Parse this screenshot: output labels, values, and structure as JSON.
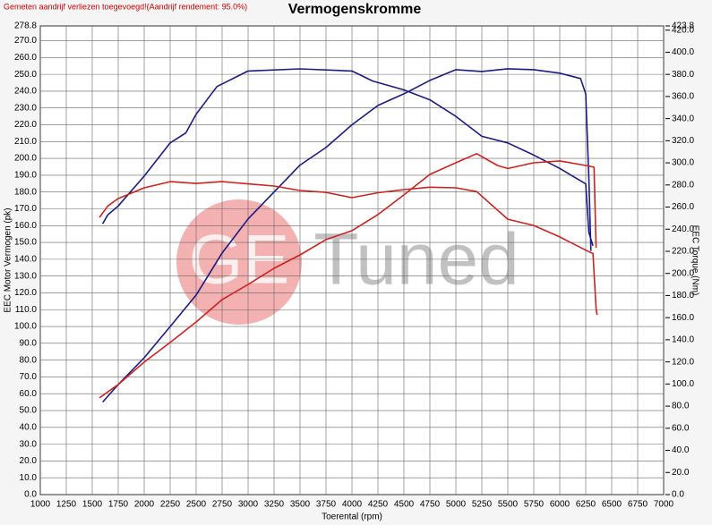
{
  "chart_data": {
    "type": "line",
    "title": "Vermogenskromme",
    "note": "Gemeten aandrijf verliezen toegevoegd!(Aandrijf rendement: 95.0%)",
    "watermark": [
      "GE",
      "Tuned"
    ],
    "xlabel": "Toerental (rpm)",
    "ylabel": "EEC Motor Vermogen (pk)",
    "y2label": "EEC Torque (Nm)",
    "grid": true,
    "xlim": [
      1000,
      7000
    ],
    "xticks": [
      1000,
      1250,
      1500,
      1750,
      2000,
      2250,
      2500,
      2750,
      3000,
      3250,
      3500,
      3750,
      4000,
      4250,
      4500,
      4750,
      5000,
      5250,
      5500,
      5750,
      6000,
      6250,
      6500,
      6750,
      7000
    ],
    "ylim": [
      0,
      278.8
    ],
    "yticks": [
      {
        "value": 0,
        "label": "0.0"
      },
      {
        "value": 10,
        "label": "10.0"
      },
      {
        "value": 20,
        "label": "20.0"
      },
      {
        "value": 30,
        "label": "30.0"
      },
      {
        "value": 40,
        "label": "40.0"
      },
      {
        "value": 50,
        "label": "50.0"
      },
      {
        "value": 60,
        "label": "60.0"
      },
      {
        "value": 70,
        "label": "70.0"
      },
      {
        "value": 80,
        "label": "80.0"
      },
      {
        "value": 90,
        "label": "90.0"
      },
      {
        "value": 100,
        "label": "100.0"
      },
      {
        "value": 110,
        "label": "110.0"
      },
      {
        "value": 120,
        "label": "120.0"
      },
      {
        "value": 130,
        "label": "130.0"
      },
      {
        "value": 140,
        "label": "140.0"
      },
      {
        "value": 150,
        "label": "150.0"
      },
      {
        "value": 160,
        "label": "160.0"
      },
      {
        "value": 170,
        "label": "170.0"
      },
      {
        "value": 180,
        "label": "180.0"
      },
      {
        "value": 190,
        "label": "190.0"
      },
      {
        "value": 200,
        "label": "200.0"
      },
      {
        "value": 210,
        "label": "210.0"
      },
      {
        "value": 220,
        "label": "220.0"
      },
      {
        "value": 230,
        "label": "230.0"
      },
      {
        "value": 240,
        "label": "240.0"
      },
      {
        "value": 250,
        "label": "250.0"
      },
      {
        "value": 260,
        "label": "260.0"
      },
      {
        "value": 270,
        "label": "270.0"
      },
      {
        "value": 278.8,
        "label": "278.8"
      }
    ],
    "y2lim": [
      0,
      423.8
    ],
    "y2ticks": [
      {
        "value": 0,
        "label": "0.0"
      },
      {
        "value": 20,
        "label": "20.0"
      },
      {
        "value": 40,
        "label": "40.0"
      },
      {
        "value": 60,
        "label": "60.0"
      },
      {
        "value": 80,
        "label": "80.0"
      },
      {
        "value": 100,
        "label": "100.0"
      },
      {
        "value": 120,
        "label": "120.0"
      },
      {
        "value": 140,
        "label": "140.0"
      },
      {
        "value": 160,
        "label": "160.0"
      },
      {
        "value": 180,
        "label": "180.0"
      },
      {
        "value": 200,
        "label": "200.0"
      },
      {
        "value": 220,
        "label": "220.0"
      },
      {
        "value": 240,
        "label": "240.0"
      },
      {
        "value": 260,
        "label": "260.0"
      },
      {
        "value": 280,
        "label": "280.0"
      },
      {
        "value": 300,
        "label": "300.0"
      },
      {
        "value": 320,
        "label": "320.0"
      },
      {
        "value": 340,
        "label": "340.0"
      },
      {
        "value": 360,
        "label": "360.0"
      },
      {
        "value": 380,
        "label": "380.0"
      },
      {
        "value": 400,
        "label": "400.0"
      },
      {
        "value": 420,
        "label": "420.0"
      },
      {
        "value": 423.8,
        "label": "423.8"
      }
    ],
    "series": [
      {
        "color": "#1c1c80",
        "axis": "y2",
        "x": [
          1600,
          1650,
          1750,
          2000,
          2250,
          2400,
          2500,
          2700,
          3000,
          3500,
          4000,
          4200,
          4500,
          4750,
          5000,
          5250,
          5500,
          5750,
          6000,
          6250,
          6280,
          6320
        ],
        "values": [
          245,
          253,
          261,
          288,
          318,
          327,
          344,
          369,
          383,
          385,
          383,
          374,
          366,
          357,
          342,
          324,
          318,
          307,
          295,
          281,
          237,
          225
        ]
      },
      {
        "color": "#1c1c80",
        "x": [
          1600,
          1750,
          2000,
          2250,
          2500,
          2750,
          3000,
          3250,
          3500,
          3750,
          4000,
          4250,
          4500,
          4750,
          5000,
          5250,
          5500,
          5750,
          6000,
          6200,
          6250,
          6280,
          6300
        ],
        "values": [
          55,
          65.5,
          81.4,
          100,
          118.7,
          143.7,
          164,
          180,
          196,
          206.5,
          220,
          231.5,
          238.4,
          246.4,
          252.8,
          251.7,
          253.3,
          252.8,
          250.7,
          247.5,
          238.4,
          188,
          145
        ]
      },
      {
        "color": "#cc2222",
        "axis": "y2",
        "x": [
          1570,
          1650,
          1750,
          2000,
          2250,
          2500,
          2750,
          3000,
          3250,
          3500,
          3750,
          4000,
          4250,
          4500,
          4750,
          5000,
          5200,
          5500,
          5750,
          6000,
          6250,
          6320,
          6350,
          6360
        ],
        "values": [
          250.7,
          261,
          267.7,
          277.4,
          283,
          281.4,
          283,
          281,
          279,
          275,
          273.3,
          268.5,
          273,
          275.8,
          278,
          277.4,
          274,
          249,
          243.4,
          233,
          221,
          218,
          168,
          162.5
        ]
      },
      {
        "color": "#cc2222",
        "x": [
          1570,
          1750,
          2000,
          2250,
          2500,
          2750,
          3000,
          3250,
          3500,
          3750,
          4000,
          4250,
          4500,
          4750,
          5000,
          5200,
          5400,
          5500,
          5750,
          6000,
          6250,
          6330,
          6350
        ],
        "values": [
          57.5,
          65.5,
          78.8,
          90.5,
          102.7,
          116,
          125,
          134.6,
          142.6,
          151.7,
          157,
          166.6,
          178.3,
          190.5,
          197.4,
          202.8,
          195.8,
          194,
          197.4,
          198.5,
          195.8,
          194.8,
          146.9
        ]
      }
    ]
  }
}
